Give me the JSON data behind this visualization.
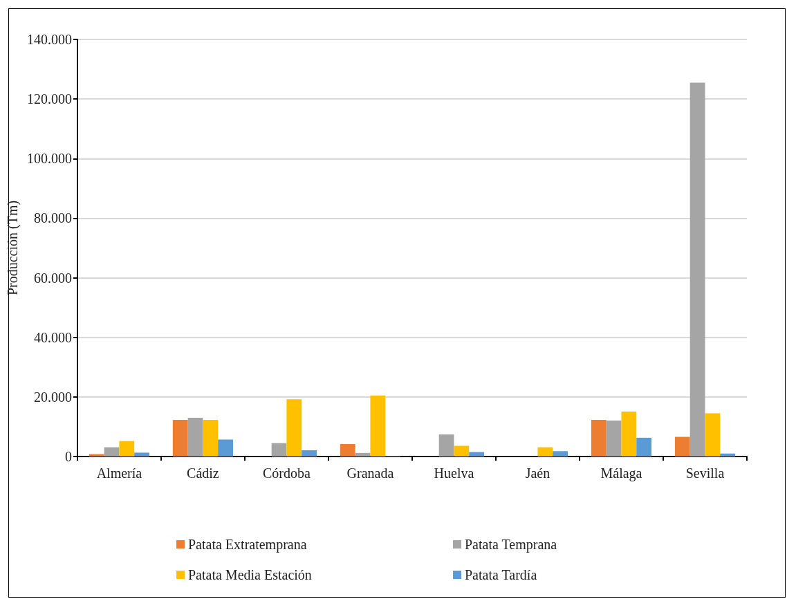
{
  "chart_data": {
    "type": "bar",
    "ylabel": "Producción (Tm)",
    "categories": [
      "Almería",
      "Cádiz",
      "Córdoba",
      "Granada",
      "Huelva",
      "Jaén",
      "Málaga",
      "Sevilla"
    ],
    "series": [
      {
        "name": "Patata Extratemprana",
        "color": "#ed7d31",
        "values": [
          800,
          12300,
          0,
          4200,
          0,
          0,
          12300,
          6600
        ]
      },
      {
        "name": "Patata Temprana",
        "color": "#a5a5a5",
        "values": [
          3100,
          13000,
          4500,
          1200,
          7400,
          0,
          12100,
          125500
        ]
      },
      {
        "name": "Patata Media Estación",
        "color": "#ffc000",
        "values": [
          5200,
          12300,
          19200,
          20500,
          3600,
          3100,
          15100,
          14500
        ]
      },
      {
        "name": "Patata Tardía",
        "color": "#5b9bd5",
        "values": [
          1300,
          5700,
          2100,
          200,
          1500,
          1800,
          6300,
          1000
        ]
      }
    ],
    "ylim": [
      0,
      140000
    ],
    "yticks": [
      0,
      {
        "value": 20000,
        "label": "20.000"
      },
      {
        "value": 40000,
        "label": "40.000"
      },
      {
        "value": 60000,
        "label": "60.000"
      },
      {
        "value": 80000,
        "label": "80.000"
      },
      {
        "value": 100000,
        "label": "100.000"
      },
      {
        "value": 120000,
        "label": "120.000"
      },
      {
        "value": 140000,
        "label": "140.000"
      }
    ],
    "grid": "y",
    "legend": "bottom"
  }
}
